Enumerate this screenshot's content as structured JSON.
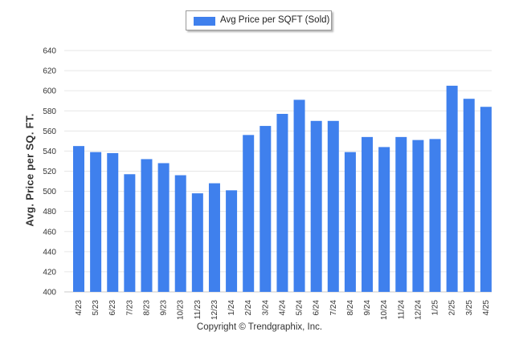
{
  "chart_data": {
    "type": "bar",
    "legend": "Avg Price per SQFT (Sold)",
    "legend_position": "top-center",
    "ylabel": "Avg. Price per SQ. FT.",
    "xlabel": "",
    "ylim": [
      400,
      640
    ],
    "yticks": [
      400,
      420,
      440,
      460,
      480,
      500,
      520,
      540,
      560,
      580,
      600,
      620,
      640
    ],
    "grid": true,
    "color": "#3f80ed",
    "categories": [
      "4/23",
      "5/23",
      "6/23",
      "7/23",
      "8/23",
      "9/23",
      "10/23",
      "11/23",
      "12/23",
      "1/24",
      "2/24",
      "3/24",
      "4/24",
      "5/24",
      "6/24",
      "7/24",
      "8/24",
      "9/24",
      "10/24",
      "11/24",
      "12/24",
      "1/25",
      "2/25",
      "3/25",
      "4/25"
    ],
    "values": [
      545,
      539,
      538,
      517,
      532,
      528,
      516,
      498,
      508,
      501,
      556,
      565,
      577,
      591,
      570,
      570,
      539,
      554,
      544,
      554,
      551,
      552,
      605,
      592,
      584
    ]
  },
  "footer": {
    "copyright": "Copyright © Trendgraphix, Inc."
  }
}
